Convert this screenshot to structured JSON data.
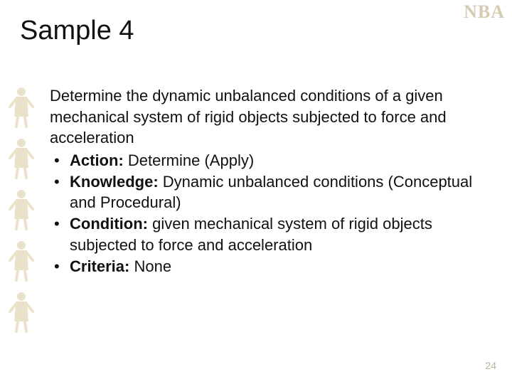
{
  "slide": {
    "title": "Sample 4",
    "intro": "Determine the dynamic unbalanced conditions of a given mechanical system of rigid objects subjected to force and acceleration",
    "bullets": [
      {
        "label": "Action:",
        "text": " Determine (Apply)"
      },
      {
        "label": "Knowledge:",
        "text": " Dynamic unbalanced conditions (Conceptual and Procedural)"
      },
      {
        "label": "Condition:",
        "text": " given mechanical system of rigid objects subjected to force and acceleration"
      },
      {
        "label": "Criteria:",
        "text": " None"
      }
    ],
    "page_number": "24",
    "logo_text": "NBA",
    "decor_color": "#d9c79a",
    "figure_count": 5
  }
}
